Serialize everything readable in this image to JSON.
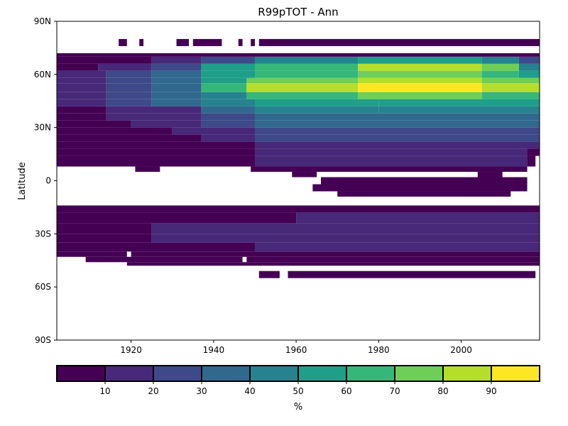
{
  "chart_data": {
    "type": "heatmap",
    "title": "R99pTOT - Ann",
    "xlabel": "",
    "ylabel": "Latitude",
    "xlim": [
      1902,
      2019
    ],
    "ylim": [
      -90,
      90
    ],
    "x_ticks": [
      {
        "value": 1920,
        "label": "1920"
      },
      {
        "value": 1940,
        "label": "1940"
      },
      {
        "value": 1960,
        "label": "1960"
      },
      {
        "value": 1980,
        "label": "1980"
      },
      {
        "value": 2000,
        "label": "2000"
      }
    ],
    "y_ticks": [
      {
        "value": 90,
        "label": "90N"
      },
      {
        "value": 60,
        "label": "60N"
      },
      {
        "value": 30,
        "label": "30N"
      },
      {
        "value": 0,
        "label": "0"
      },
      {
        "value": -30,
        "label": "30S"
      },
      {
        "value": -60,
        "label": "60S"
      },
      {
        "value": -90,
        "label": "90S"
      }
    ],
    "colorbar": {
      "label": "%",
      "bounds": [
        0,
        10,
        20,
        30,
        40,
        50,
        60,
        70,
        80,
        90,
        100
      ],
      "colors": [
        "#440154",
        "#482878",
        "#3e4989",
        "#31688e",
        "#26828e",
        "#1f9e89",
        "#35b779",
        "#6ece58",
        "#b5de2b",
        "#fde725"
      ],
      "tick_labels": [
        "10",
        "20",
        "30",
        "40",
        "50",
        "60",
        "70",
        "80",
        "90"
      ],
      "orientation": "horizontal",
      "placement": "bottom"
    },
    "lat_bands": [
      {
        "lat": [
          76,
          80
        ],
        "segments": [
          [
            1917,
            1919,
            0
          ],
          [
            1922,
            1923,
            0
          ],
          [
            1931,
            1934,
            0
          ],
          [
            1935,
            1942,
            0
          ],
          [
            1946,
            1947,
            0
          ],
          [
            1949,
            1950,
            0
          ],
          [
            1951,
            2019,
            0
          ]
        ]
      },
      {
        "lat": [
          70,
          72
        ],
        "segments": [
          [
            1902,
            2019,
            0
          ]
        ]
      },
      {
        "lat": [
          66,
          70
        ],
        "segments": [
          [
            1902,
            1925,
            0
          ],
          [
            1925,
            1937,
            1
          ],
          [
            1937,
            1950,
            2
          ],
          [
            1950,
            1975,
            4
          ],
          [
            1975,
            2005,
            5
          ],
          [
            2005,
            2014,
            4
          ],
          [
            2014,
            2019,
            2
          ]
        ]
      },
      {
        "lat": [
          62,
          66
        ],
        "segments": [
          [
            1902,
            1912,
            0
          ],
          [
            1912,
            1925,
            1
          ],
          [
            1925,
            1937,
            2
          ],
          [
            1937,
            1950,
            5
          ],
          [
            1950,
            1975,
            6
          ],
          [
            1975,
            2005,
            8
          ],
          [
            2005,
            2014,
            7
          ],
          [
            2014,
            2019,
            4
          ]
        ]
      },
      {
        "lat": [
          58,
          62
        ],
        "segments": [
          [
            1902,
            1914,
            1
          ],
          [
            1914,
            1925,
            2
          ],
          [
            1925,
            1937,
            3
          ],
          [
            1937,
            1950,
            5
          ],
          [
            1950,
            1975,
            6
          ],
          [
            1975,
            2005,
            7
          ],
          [
            2005,
            2014,
            6
          ],
          [
            2014,
            2019,
            5
          ]
        ]
      },
      {
        "lat": [
          55,
          58
        ],
        "segments": [
          [
            1902,
            1914,
            1
          ],
          [
            1914,
            1925,
            2
          ],
          [
            1925,
            1937,
            3
          ],
          [
            1937,
            1948,
            5
          ],
          [
            1948,
            1975,
            7
          ],
          [
            1975,
            2005,
            8
          ],
          [
            2005,
            2019,
            7
          ]
        ]
      },
      {
        "lat": [
          50,
          55
        ],
        "segments": [
          [
            1902,
            1914,
            1
          ],
          [
            1914,
            1925,
            2
          ],
          [
            1925,
            1937,
            3
          ],
          [
            1937,
            1948,
            6
          ],
          [
            1948,
            1975,
            8
          ],
          [
            1975,
            2005,
            9
          ],
          [
            2005,
            2019,
            8
          ]
        ]
      },
      {
        "lat": [
          46,
          50
        ],
        "segments": [
          [
            1902,
            1914,
            1
          ],
          [
            1914,
            1925,
            2
          ],
          [
            1925,
            1937,
            3
          ],
          [
            1937,
            1948,
            4
          ],
          [
            1948,
            1975,
            6
          ],
          [
            1975,
            2005,
            7
          ],
          [
            2005,
            2019,
            6
          ]
        ]
      },
      {
        "lat": [
          42,
          46
        ],
        "segments": [
          [
            1902,
            1914,
            1
          ],
          [
            1914,
            1925,
            2
          ],
          [
            1925,
            1937,
            3
          ],
          [
            1937,
            1950,
            4
          ],
          [
            1950,
            1980,
            5
          ],
          [
            1980,
            2019,
            5
          ]
        ]
      },
      {
        "lat": [
          38,
          42
        ],
        "segments": [
          [
            1902,
            1914,
            0
          ],
          [
            1914,
            1937,
            1
          ],
          [
            1937,
            1950,
            3
          ],
          [
            1950,
            1980,
            4
          ],
          [
            1980,
            2019,
            4
          ]
        ]
      },
      {
        "lat": [
          34,
          38
        ],
        "segments": [
          [
            1902,
            1914,
            0
          ],
          [
            1914,
            1937,
            1
          ],
          [
            1937,
            1950,
            2
          ],
          [
            1950,
            2019,
            3
          ]
        ]
      },
      {
        "lat": [
          30,
          34
        ],
        "segments": [
          [
            1902,
            1920,
            0
          ],
          [
            1920,
            1937,
            1
          ],
          [
            1937,
            1950,
            2
          ],
          [
            1950,
            2019,
            3
          ]
        ]
      },
      {
        "lat": [
          26,
          30
        ],
        "segments": [
          [
            1902,
            1930,
            0
          ],
          [
            1930,
            1950,
            1
          ],
          [
            1950,
            2019,
            2
          ]
        ]
      },
      {
        "lat": [
          22,
          26
        ],
        "segments": [
          [
            1902,
            1937,
            0
          ],
          [
            1937,
            1950,
            1
          ],
          [
            1950,
            2019,
            2
          ]
        ]
      },
      {
        "lat": [
          18,
          22
        ],
        "segments": [
          [
            1902,
            1950,
            0
          ],
          [
            1950,
            2019,
            1
          ]
        ]
      },
      {
        "lat": [
          14,
          18
        ],
        "segments": [
          [
            1902,
            1950,
            0
          ],
          [
            1950,
            2016,
            1
          ],
          [
            2016,
            2019,
            0
          ]
        ]
      },
      {
        "lat": [
          8,
          14
        ],
        "segments": [
          [
            1902,
            1950,
            0
          ],
          [
            1950,
            2016,
            1
          ],
          [
            2016,
            2018,
            0
          ]
        ]
      },
      {
        "lat": [
          5,
          8
        ],
        "segments": [
          [
            1921,
            1927,
            0
          ],
          [
            1949,
            2016,
            0
          ]
        ]
      },
      {
        "lat": [
          2,
          5
        ],
        "segments": [
          [
            1959,
            1965,
            0
          ],
          [
            2004,
            2010,
            0
          ]
        ]
      },
      {
        "lat": [
          -2,
          2
        ],
        "segments": [
          [
            1966,
            2016,
            0
          ]
        ]
      },
      {
        "lat": [
          -6,
          -2
        ],
        "segments": [
          [
            1964,
            2016,
            0
          ]
        ]
      },
      {
        "lat": [
          -9,
          -6
        ],
        "segments": [
          [
            1970,
            2012,
            0
          ]
        ]
      },
      {
        "lat": [
          -14,
          -9
        ],
        "segments": []
      },
      {
        "lat": [
          -18,
          -14
        ],
        "segments": [
          [
            1902,
            2019,
            0
          ]
        ]
      },
      {
        "lat": [
          -24,
          -18
        ],
        "segments": [
          [
            1902,
            1960,
            0
          ],
          [
            1960,
            2019,
            1
          ]
        ]
      },
      {
        "lat": [
          -30,
          -24
        ],
        "segments": [
          [
            1902,
            1925,
            0
          ],
          [
            1925,
            1950,
            1
          ],
          [
            1950,
            2019,
            1
          ]
        ]
      },
      {
        "lat": [
          -35,
          -30
        ],
        "segments": [
          [
            1902,
            1925,
            0
          ],
          [
            1925,
            1950,
            1
          ],
          [
            1950,
            2019,
            1
          ]
        ]
      },
      {
        "lat": [
          -40,
          -35
        ],
        "segments": [
          [
            1902,
            1950,
            0
          ],
          [
            1950,
            2019,
            1
          ]
        ]
      },
      {
        "lat": [
          -43,
          -40
        ],
        "segments": [
          [
            1902,
            1919,
            0
          ],
          [
            1920,
            2019,
            0
          ]
        ]
      },
      {
        "lat": [
          -46,
          -43
        ],
        "segments": [
          [
            1909,
            1947,
            0
          ],
          [
            1948,
            2019,
            0
          ]
        ]
      },
      {
        "lat": [
          -48,
          -46
        ],
        "segments": [
          [
            1919,
            2019,
            0
          ]
        ]
      },
      {
        "lat": [
          -55,
          -51
        ],
        "segments": [
          [
            1951,
            1956,
            0
          ],
          [
            1958,
            2018,
            0
          ]
        ]
      }
    ]
  }
}
